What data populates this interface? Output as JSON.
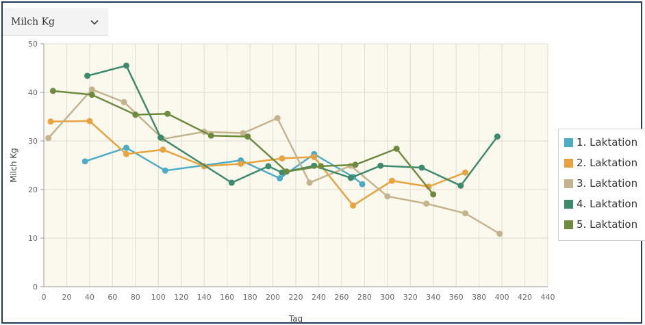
{
  "dropdown": {
    "selected": "Milch Kg"
  },
  "chart_data": {
    "type": "line",
    "title": "",
    "xlabel": "Tag",
    "ylabel": "Milch Kg",
    "xlim": [
      0,
      440
    ],
    "ylim": [
      0,
      50
    ],
    "xticks": [
      0,
      20,
      40,
      60,
      80,
      100,
      120,
      140,
      160,
      180,
      200,
      220,
      240,
      260,
      280,
      300,
      320,
      340,
      360,
      380,
      400,
      420,
      440
    ],
    "yticks": [
      0,
      10,
      20,
      30,
      40,
      50
    ],
    "grid": true,
    "legend_position": "right",
    "series": [
      {
        "name": "1. Laktation",
        "color": "#4bacc6",
        "x": [
          36,
          72,
          106,
          172,
          206,
          236,
          270,
          278
        ],
        "y": [
          25.8,
          28.6,
          23.9,
          26.0,
          22.3,
          27.3,
          22.6,
          21.1
        ]
      },
      {
        "name": "2. Laktation",
        "color": "#e8a33d",
        "x": [
          6,
          40,
          72,
          104,
          140,
          172,
          208,
          236,
          270,
          304,
          336,
          368
        ],
        "y": [
          34.0,
          34.1,
          27.3,
          28.2,
          24.8,
          25.3,
          26.4,
          26.7,
          16.7,
          21.8,
          20.6,
          23.5
        ]
      },
      {
        "name": "3. Laktation",
        "color": "#c4b48e",
        "x": [
          4,
          42,
          70,
          104,
          140,
          174,
          204,
          232,
          268,
          300,
          334,
          368,
          398
        ],
        "y": [
          30.6,
          40.6,
          38.0,
          30.4,
          31.9,
          31.6,
          34.7,
          21.4,
          24.9,
          18.6,
          17.1,
          15.1,
          10.9
        ]
      },
      {
        "name": "4. Laktation",
        "color": "#3e8a6c",
        "x": [
          38,
          72,
          102,
          164,
          196,
          208,
          236,
          268,
          294,
          330,
          364,
          396
        ],
        "y": [
          43.4,
          45.5,
          30.7,
          21.4,
          24.8,
          23.5,
          24.9,
          22.4,
          24.9,
          24.5,
          20.8,
          30.9
        ]
      },
      {
        "name": "5. Laktation",
        "color": "#6e8a3e",
        "x": [
          8,
          42,
          80,
          108,
          146,
          178,
          212,
          242,
          272,
          308,
          340
        ],
        "y": [
          40.3,
          39.5,
          35.4,
          35.6,
          31.1,
          30.9,
          23.7,
          24.8,
          25.1,
          28.4,
          19.0
        ]
      }
    ]
  }
}
